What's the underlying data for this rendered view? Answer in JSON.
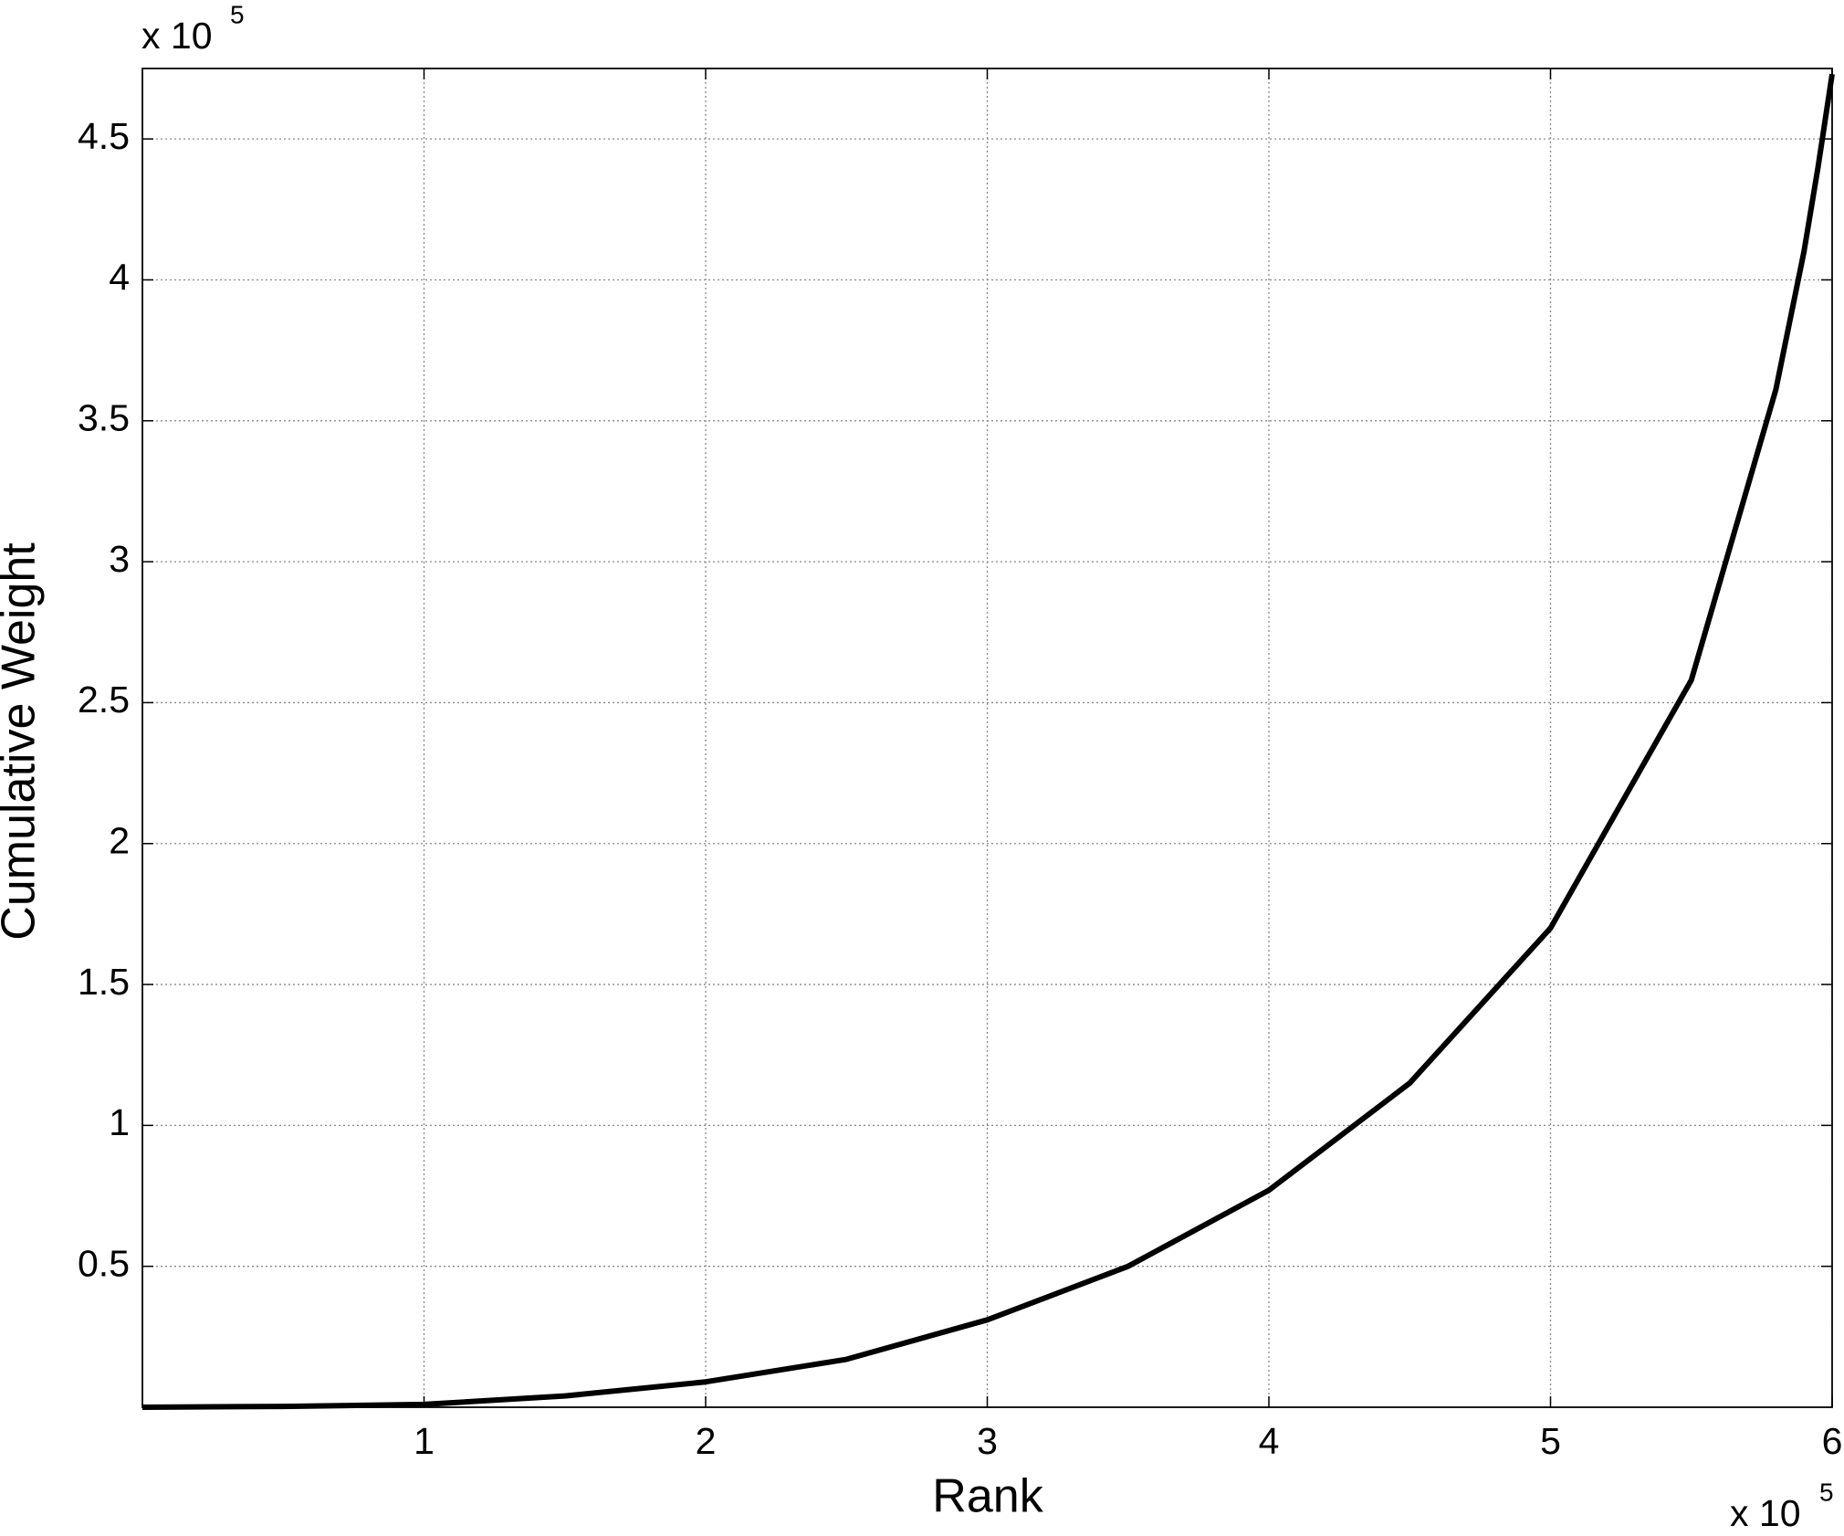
{
  "chart_data": {
    "type": "line",
    "xlabel": "Rank",
    "ylabel": "Cumulative Weight",
    "x_multiplier": {
      "base": "x 10",
      "exponent": "5"
    },
    "y_multiplier": {
      "base": "x 10",
      "exponent": "5"
    },
    "x": [
      0,
      0.5,
      1,
      1.5,
      2,
      2.5,
      3,
      3.5,
      4,
      4.5,
      5,
      5.5,
      5.8,
      5.9,
      5.95,
      6
    ],
    "values": [
      0,
      0.003,
      0.01,
      0.04,
      0.09,
      0.17,
      0.31,
      0.5,
      0.77,
      1.15,
      1.7,
      2.58,
      3.61,
      4.1,
      4.4,
      4.73
    ],
    "color": "#000000",
    "xlim": [
      0,
      6
    ],
    "xticks": [
      1,
      2,
      3,
      4,
      5,
      6
    ],
    "ylim": [
      0,
      4.75
    ],
    "yticks": [
      0.5,
      1,
      1.5,
      2,
      2.5,
      3,
      3.5,
      4,
      4.5
    ],
    "grid": true
  }
}
